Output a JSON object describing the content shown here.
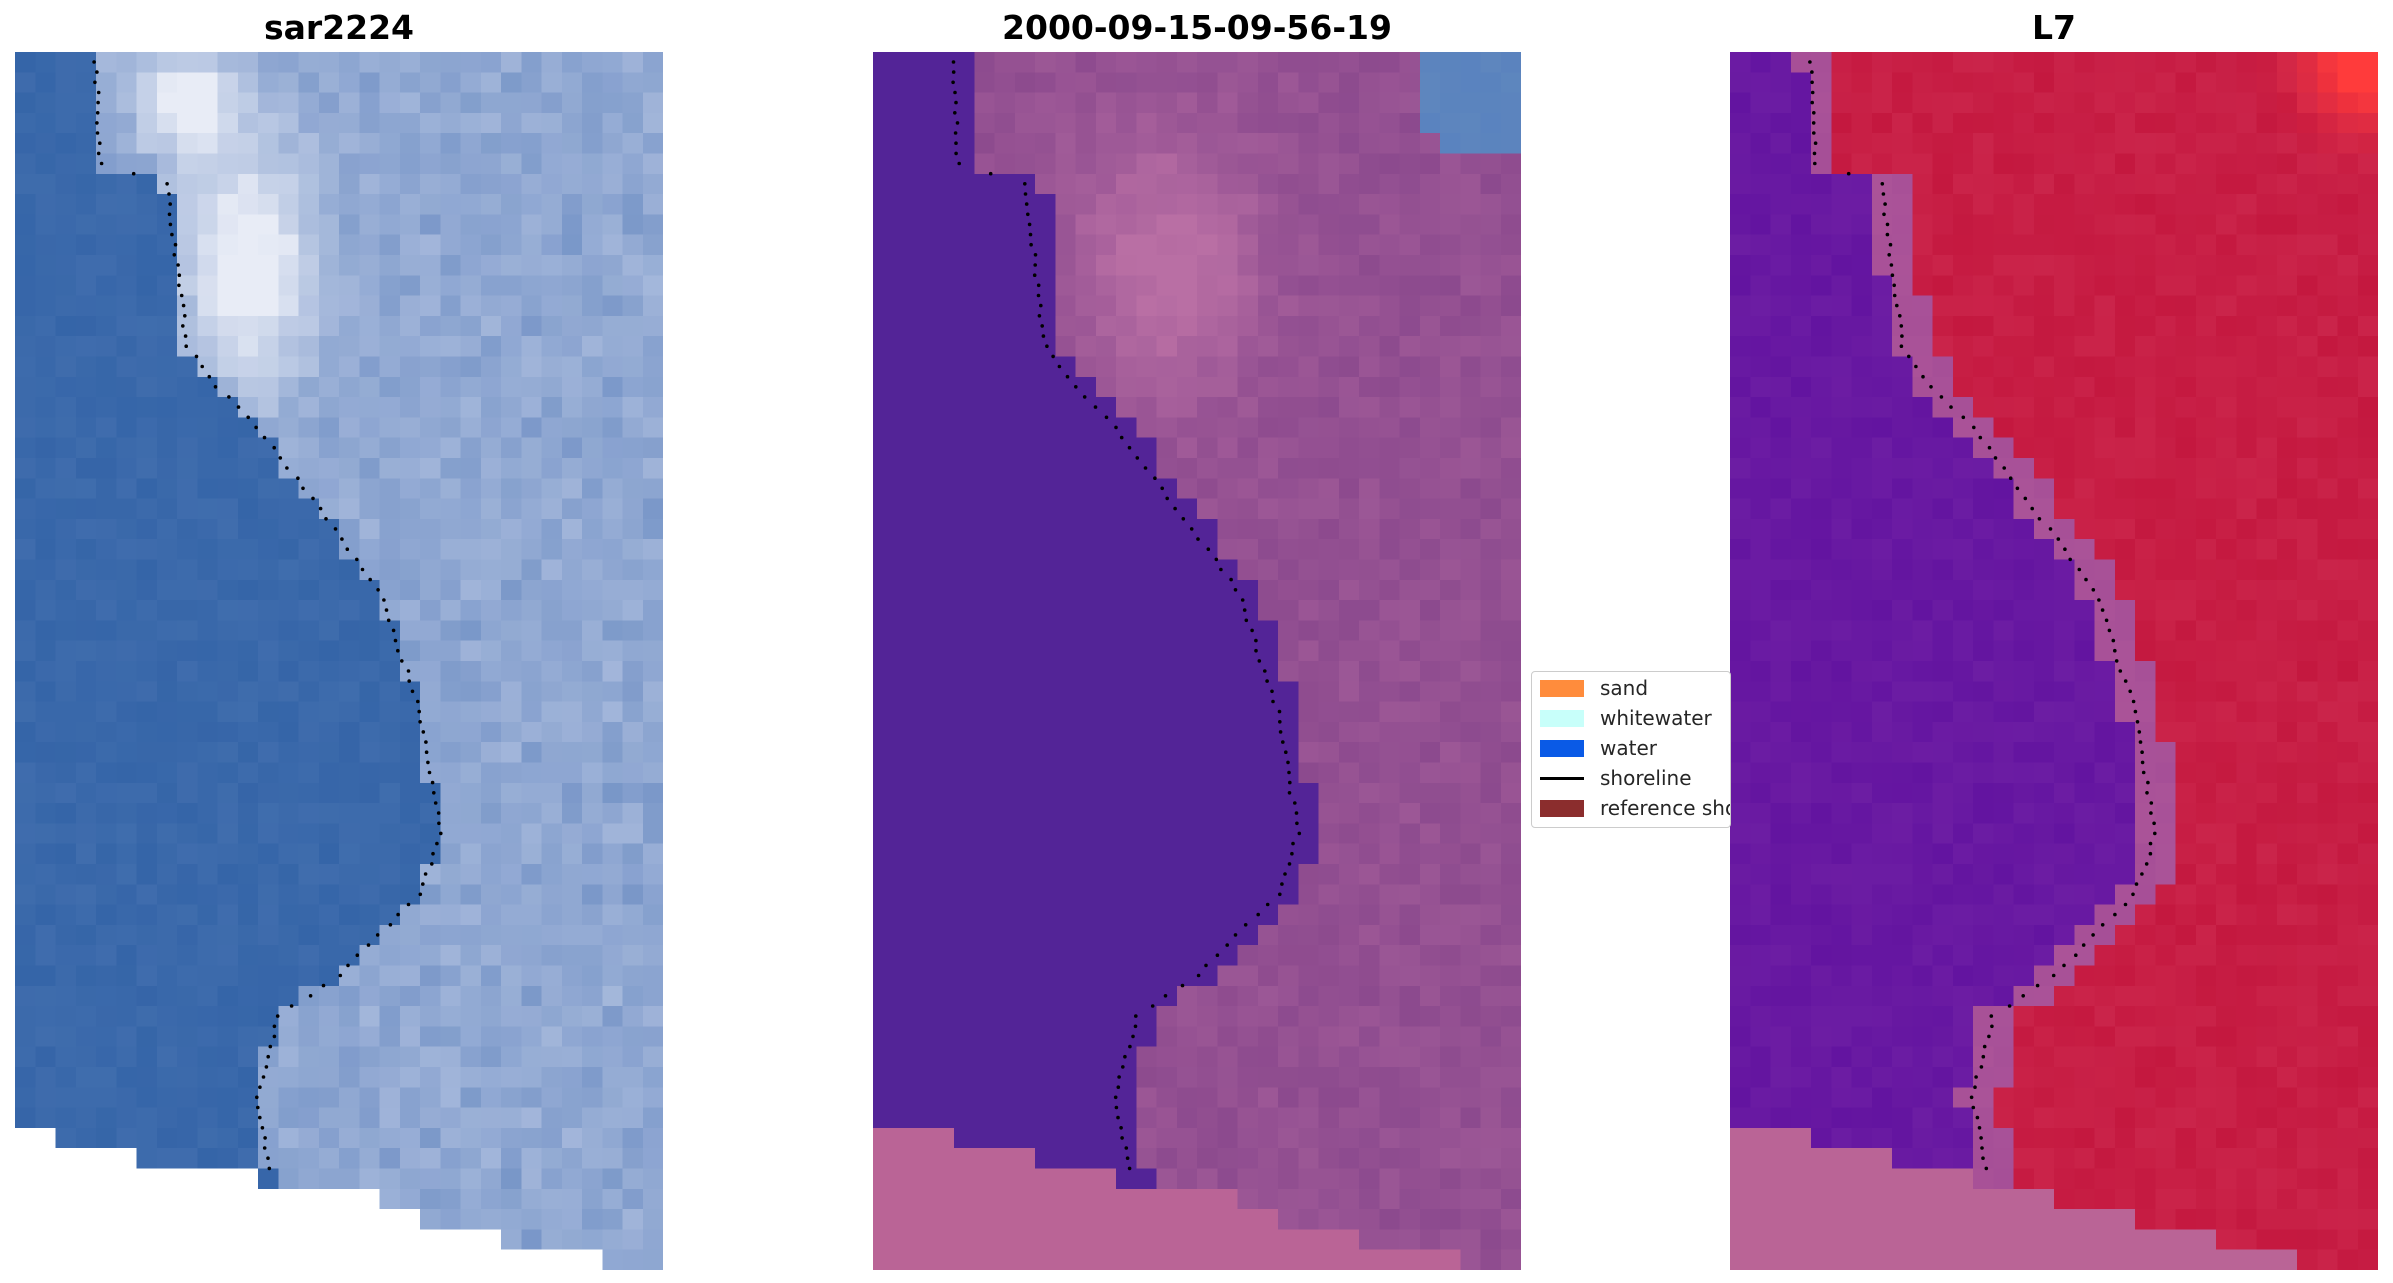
{
  "panels": [
    {
      "title": "sar2224",
      "palette": {
        "water": "#3565a8",
        "land": "#8ea6d2",
        "bright": "#e8ecf6"
      }
    },
    {
      "title": "2000-09-15-09-56-19",
      "palette": {
        "water": "#532497",
        "land": "#8c4a8e",
        "bright": "#b96fa4",
        "nodata": "#ba6496",
        "corner": "#5e86be"
      }
    },
    {
      "title": "L7",
      "palette": {
        "water": "#6314a0",
        "land": "#c4183f",
        "bright": "#ff3b3b",
        "nodata": "#ba6496",
        "edge": "#a64f97"
      }
    }
  ],
  "legend": {
    "items": [
      {
        "label": "sand",
        "color": "#ff8c3c",
        "kind": "patch"
      },
      {
        "label": "whitewater",
        "color": "#c8fffa",
        "kind": "patch"
      },
      {
        "label": "water",
        "color": "#0a5ae6",
        "kind": "patch"
      },
      {
        "label": "shoreline",
        "color": "#000000",
        "kind": "line"
      },
      {
        "label": "reference shoreline",
        "color": "#8b2d2d",
        "kind": "patch"
      }
    ]
  }
}
